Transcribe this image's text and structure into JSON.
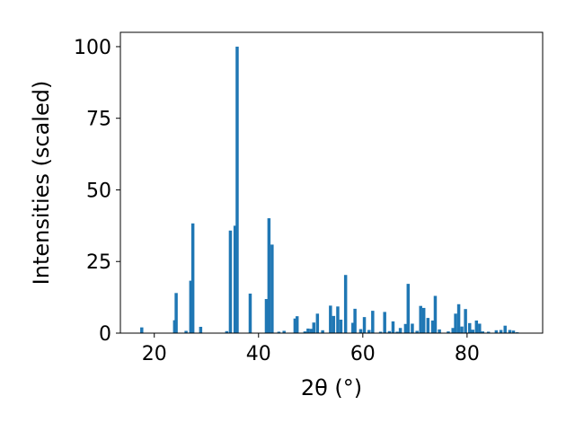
{
  "chart_data": {
    "type": "bar",
    "xlabel": "2θ (°)",
    "ylabel": "Intensities (scaled)",
    "xlim": [
      13.5,
      94.5
    ],
    "ylim": [
      0,
      105
    ],
    "xticks": [
      20,
      40,
      60,
      80
    ],
    "yticks": [
      0,
      25,
      50,
      75,
      100
    ],
    "bar_color": "#1f77b4",
    "bar_width": 0.6,
    "grid": false,
    "x": [
      17.6,
      23.9,
      24.2,
      26.1,
      27.0,
      27.4,
      28.9,
      33.9,
      34.6,
      35.5,
      35.9,
      38.4,
      41.5,
      42.0,
      42.6,
      43.9,
      44.9,
      47.0,
      47.4,
      48.9,
      49.5,
      50.1,
      50.6,
      51.3,
      52.3,
      53.8,
      54.4,
      55.2,
      55.8,
      56.7,
      58.1,
      58.5,
      59.6,
      60.3,
      61.2,
      61.9,
      63.4,
      64.2,
      65.1,
      65.8,
      66.6,
      67.2,
      68.2,
      68.7,
      69.5,
      70.4,
      71.1,
      71.7,
      72.5,
      73.4,
      73.9,
      74.7,
      76.4,
      77.3,
      77.8,
      78.4,
      79.0,
      79.7,
      80.5,
      81.1,
      81.8,
      82.4,
      83.0,
      84.1,
      85.6,
      86.5,
      87.3,
      88.2,
      88.9,
      89.6
    ],
    "values": [
      2.0,
      4.5,
      14.0,
      0.8,
      18.3,
      38.3,
      2.2,
      0.7,
      35.8,
      37.5,
      100.0,
      13.8,
      11.9,
      40.1,
      30.9,
      0.5,
      0.8,
      5.1,
      5.9,
      0.6,
      1.6,
      1.5,
      3.7,
      6.8,
      1.0,
      9.6,
      6.0,
      9.3,
      4.7,
      20.3,
      3.6,
      8.5,
      1.4,
      5.6,
      1.1,
      7.8,
      0.5,
      7.4,
      0.7,
      4.1,
      0.5,
      1.8,
      3.2,
      17.2,
      3.3,
      0.8,
      9.5,
      8.8,
      5.3,
      4.4,
      13.0,
      1.3,
      0.6,
      1.8,
      6.8,
      10.1,
      2.3,
      8.4,
      3.5,
      1.2,
      4.4,
      3.3,
      0.6,
      0.5,
      1.0,
      1.1,
      2.6,
      1.1,
      0.9,
      0.3
    ]
  }
}
